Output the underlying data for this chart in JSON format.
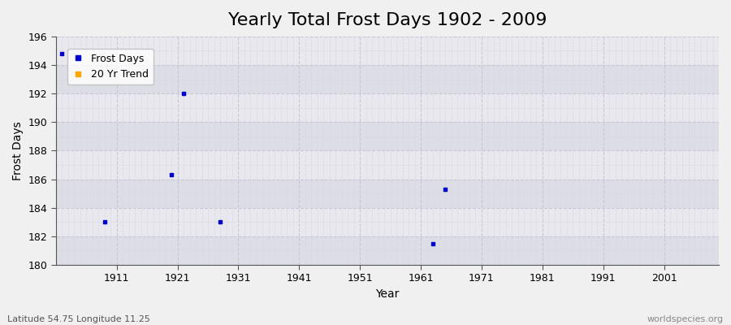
{
  "title": "Yearly Total Frost Days 1902 - 2009",
  "xlabel": "Year",
  "ylabel": "Frost Days",
  "xlim": [
    1901,
    2010
  ],
  "ylim": [
    180,
    196
  ],
  "yticks": [
    180,
    182,
    184,
    186,
    188,
    190,
    192,
    194,
    196
  ],
  "xticks": [
    1911,
    1921,
    1931,
    1941,
    1951,
    1961,
    1971,
    1981,
    1991,
    2001
  ],
  "frost_days_x": [
    1902,
    1909,
    1920,
    1922,
    1928,
    1963,
    1965
  ],
  "frost_days_y": [
    194.8,
    183.0,
    186.3,
    192.0,
    183.0,
    181.5,
    185.3
  ],
  "point_color": "#0000cc",
  "trend_color": "#ffa500",
  "background_color": "#f0f0f0",
  "plot_bg_color_light": "#e8e8ee",
  "plot_bg_color_dark": "#dddde5",
  "grid_major_color": "#c8c8d8",
  "grid_minor_color": "#d8d8e4",
  "watermark_left": "Latitude 54.75 Longitude 11.25",
  "watermark_right": "worldspecies.org",
  "title_fontsize": 16,
  "axis_label_fontsize": 10,
  "tick_fontsize": 9,
  "band_ranges": [
    [
      180,
      182
    ],
    [
      184,
      186
    ],
    [
      188,
      190
    ],
    [
      192,
      194
    ]
  ]
}
